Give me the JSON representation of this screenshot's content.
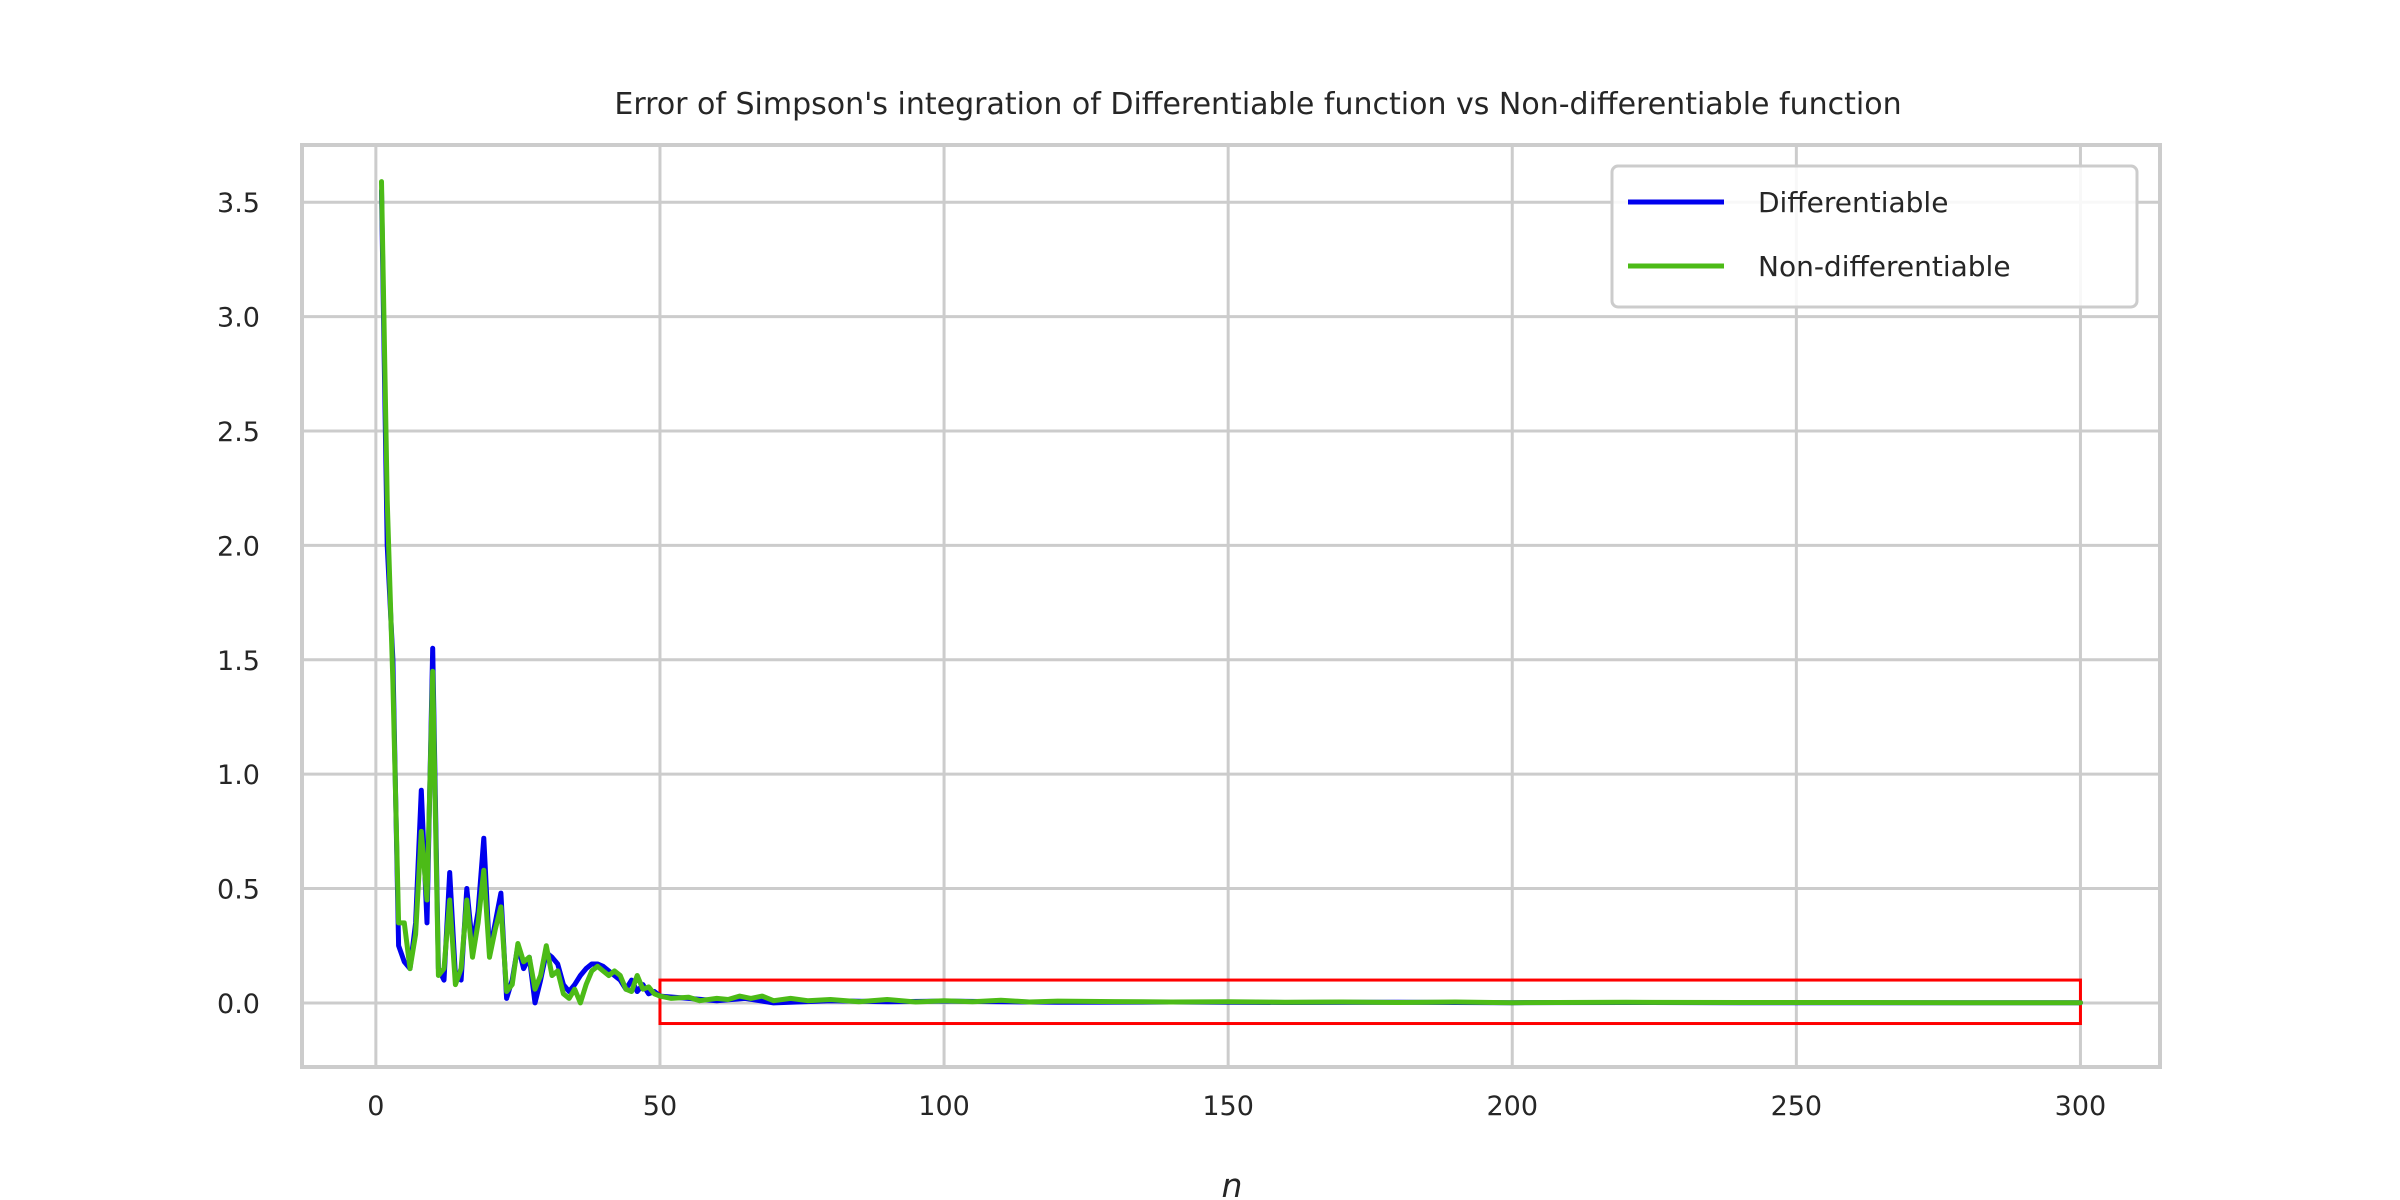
{
  "chart_data": {
    "type": "line",
    "title": "Error of Simpson's integration of Differentiable function vs Non-differentiable function",
    "xlabel": "n",
    "ylabel": "",
    "xlim": [
      -13,
      314
    ],
    "ylim": [
      -0.28,
      3.75
    ],
    "x_ticks": [
      0,
      50,
      100,
      150,
      200,
      250,
      300
    ],
    "y_ticks": [
      0.0,
      0.5,
      1.0,
      1.5,
      2.0,
      2.5,
      3.0,
      3.5
    ],
    "x_tick_labels": [
      "0",
      "50",
      "100",
      "150",
      "200",
      "250",
      "300"
    ],
    "y_tick_labels": [
      "0.0",
      "0.5",
      "1.0",
      "1.5",
      "2.0",
      "2.5",
      "3.0",
      "3.5"
    ],
    "grid": true,
    "legend_position": "top-right",
    "highlight_box": {
      "x": [
        50,
        300
      ],
      "y": [
        -0.09,
        0.1
      ],
      "color": "#ff0000"
    },
    "series": [
      {
        "name": "Differentiable",
        "color": "#0000ee",
        "points": [
          [
            1,
            3.55
          ],
          [
            2,
            2.0
          ],
          [
            3,
            1.5
          ],
          [
            4,
            0.25
          ],
          [
            5,
            0.18
          ],
          [
            6,
            0.15
          ],
          [
            7,
            0.35
          ],
          [
            8,
            0.93
          ],
          [
            9,
            0.35
          ],
          [
            10,
            1.55
          ],
          [
            11,
            0.15
          ],
          [
            12,
            0.1
          ],
          [
            13,
            0.57
          ],
          [
            14,
            0.12
          ],
          [
            15,
            0.1
          ],
          [
            16,
            0.5
          ],
          [
            17,
            0.25
          ],
          [
            18,
            0.4
          ],
          [
            19,
            0.72
          ],
          [
            20,
            0.22
          ],
          [
            21,
            0.35
          ],
          [
            22,
            0.48
          ],
          [
            23,
            0.02
          ],
          [
            24,
            0.1
          ],
          [
            25,
            0.25
          ],
          [
            26,
            0.15
          ],
          [
            27,
            0.2
          ],
          [
            28,
            0.0
          ],
          [
            29,
            0.1
          ],
          [
            30,
            0.22
          ],
          [
            31,
            0.2
          ],
          [
            32,
            0.17
          ],
          [
            33,
            0.08
          ],
          [
            34,
            0.05
          ],
          [
            35,
            0.08
          ],
          [
            36,
            0.12
          ],
          [
            37,
            0.15
          ],
          [
            38,
            0.17
          ],
          [
            39,
            0.17
          ],
          [
            40,
            0.16
          ],
          [
            41,
            0.14
          ],
          [
            42,
            0.12
          ],
          [
            43,
            0.1
          ],
          [
            44,
            0.06
          ],
          [
            45,
            0.1
          ],
          [
            46,
            0.05
          ],
          [
            47,
            0.08
          ],
          [
            48,
            0.04
          ],
          [
            49,
            0.05
          ],
          [
            50,
            0.03
          ],
          [
            55,
            0.02
          ],
          [
            60,
            0.01
          ],
          [
            65,
            0.02
          ],
          [
            70,
            0.0
          ],
          [
            80,
            0.01
          ],
          [
            90,
            0.005
          ],
          [
            100,
            0.008
          ],
          [
            120,
            0.003
          ],
          [
            140,
            0.004
          ],
          [
            160,
            0.002
          ],
          [
            180,
            0.003
          ],
          [
            200,
            0.001
          ],
          [
            220,
            0.002
          ],
          [
            240,
            0.001
          ],
          [
            260,
            0.001
          ],
          [
            280,
            0.001
          ],
          [
            300,
            0.001
          ]
        ]
      },
      {
        "name": "Non-differentiable",
        "color": "#4cbb17",
        "points": [
          [
            1,
            3.59
          ],
          [
            2,
            2.2
          ],
          [
            3,
            1.4
          ],
          [
            4,
            0.35
          ],
          [
            5,
            0.35
          ],
          [
            6,
            0.15
          ],
          [
            7,
            0.3
          ],
          [
            8,
            0.75
          ],
          [
            9,
            0.45
          ],
          [
            10,
            1.45
          ],
          [
            11,
            0.12
          ],
          [
            12,
            0.15
          ],
          [
            13,
            0.45
          ],
          [
            14,
            0.08
          ],
          [
            15,
            0.15
          ],
          [
            16,
            0.45
          ],
          [
            17,
            0.2
          ],
          [
            18,
            0.35
          ],
          [
            19,
            0.58
          ],
          [
            20,
            0.2
          ],
          [
            21,
            0.32
          ],
          [
            22,
            0.42
          ],
          [
            23,
            0.05
          ],
          [
            24,
            0.08
          ],
          [
            25,
            0.26
          ],
          [
            26,
            0.18
          ],
          [
            27,
            0.2
          ],
          [
            28,
            0.06
          ],
          [
            29,
            0.12
          ],
          [
            30,
            0.25
          ],
          [
            31,
            0.12
          ],
          [
            32,
            0.14
          ],
          [
            33,
            0.04
          ],
          [
            34,
            0.02
          ],
          [
            35,
            0.06
          ],
          [
            36,
            0.0
          ],
          [
            37,
            0.08
          ],
          [
            38,
            0.14
          ],
          [
            39,
            0.16
          ],
          [
            40,
            0.14
          ],
          [
            41,
            0.12
          ],
          [
            42,
            0.14
          ],
          [
            43,
            0.12
          ],
          [
            44,
            0.06
          ],
          [
            45,
            0.05
          ],
          [
            46,
            0.12
          ],
          [
            47,
            0.06
          ],
          [
            48,
            0.07
          ],
          [
            49,
            0.04
          ],
          [
            50,
            0.03
          ],
          [
            52,
            0.02
          ],
          [
            55,
            0.025
          ],
          [
            57,
            0.01
          ],
          [
            60,
            0.02
          ],
          [
            62,
            0.015
          ],
          [
            64,
            0.03
          ],
          [
            66,
            0.02
          ],
          [
            68,
            0.03
          ],
          [
            70,
            0.01
          ],
          [
            73,
            0.02
          ],
          [
            76,
            0.01
          ],
          [
            80,
            0.015
          ],
          [
            85,
            0.005
          ],
          [
            90,
            0.015
          ],
          [
            95,
            0.004
          ],
          [
            100,
            0.01
          ],
          [
            105,
            0.005
          ],
          [
            110,
            0.012
          ],
          [
            115,
            0.004
          ],
          [
            120,
            0.008
          ],
          [
            130,
            0.006
          ],
          [
            140,
            0.004
          ],
          [
            150,
            0.005
          ],
          [
            160,
            0.003
          ],
          [
            170,
            0.004
          ],
          [
            180,
            0.002
          ],
          [
            190,
            0.004
          ],
          [
            200,
            0.001
          ],
          [
            220,
            0.003
          ],
          [
            240,
            0.002
          ],
          [
            260,
            0.002
          ],
          [
            280,
            0.001
          ],
          [
            300,
            0.001
          ]
        ]
      }
    ]
  }
}
